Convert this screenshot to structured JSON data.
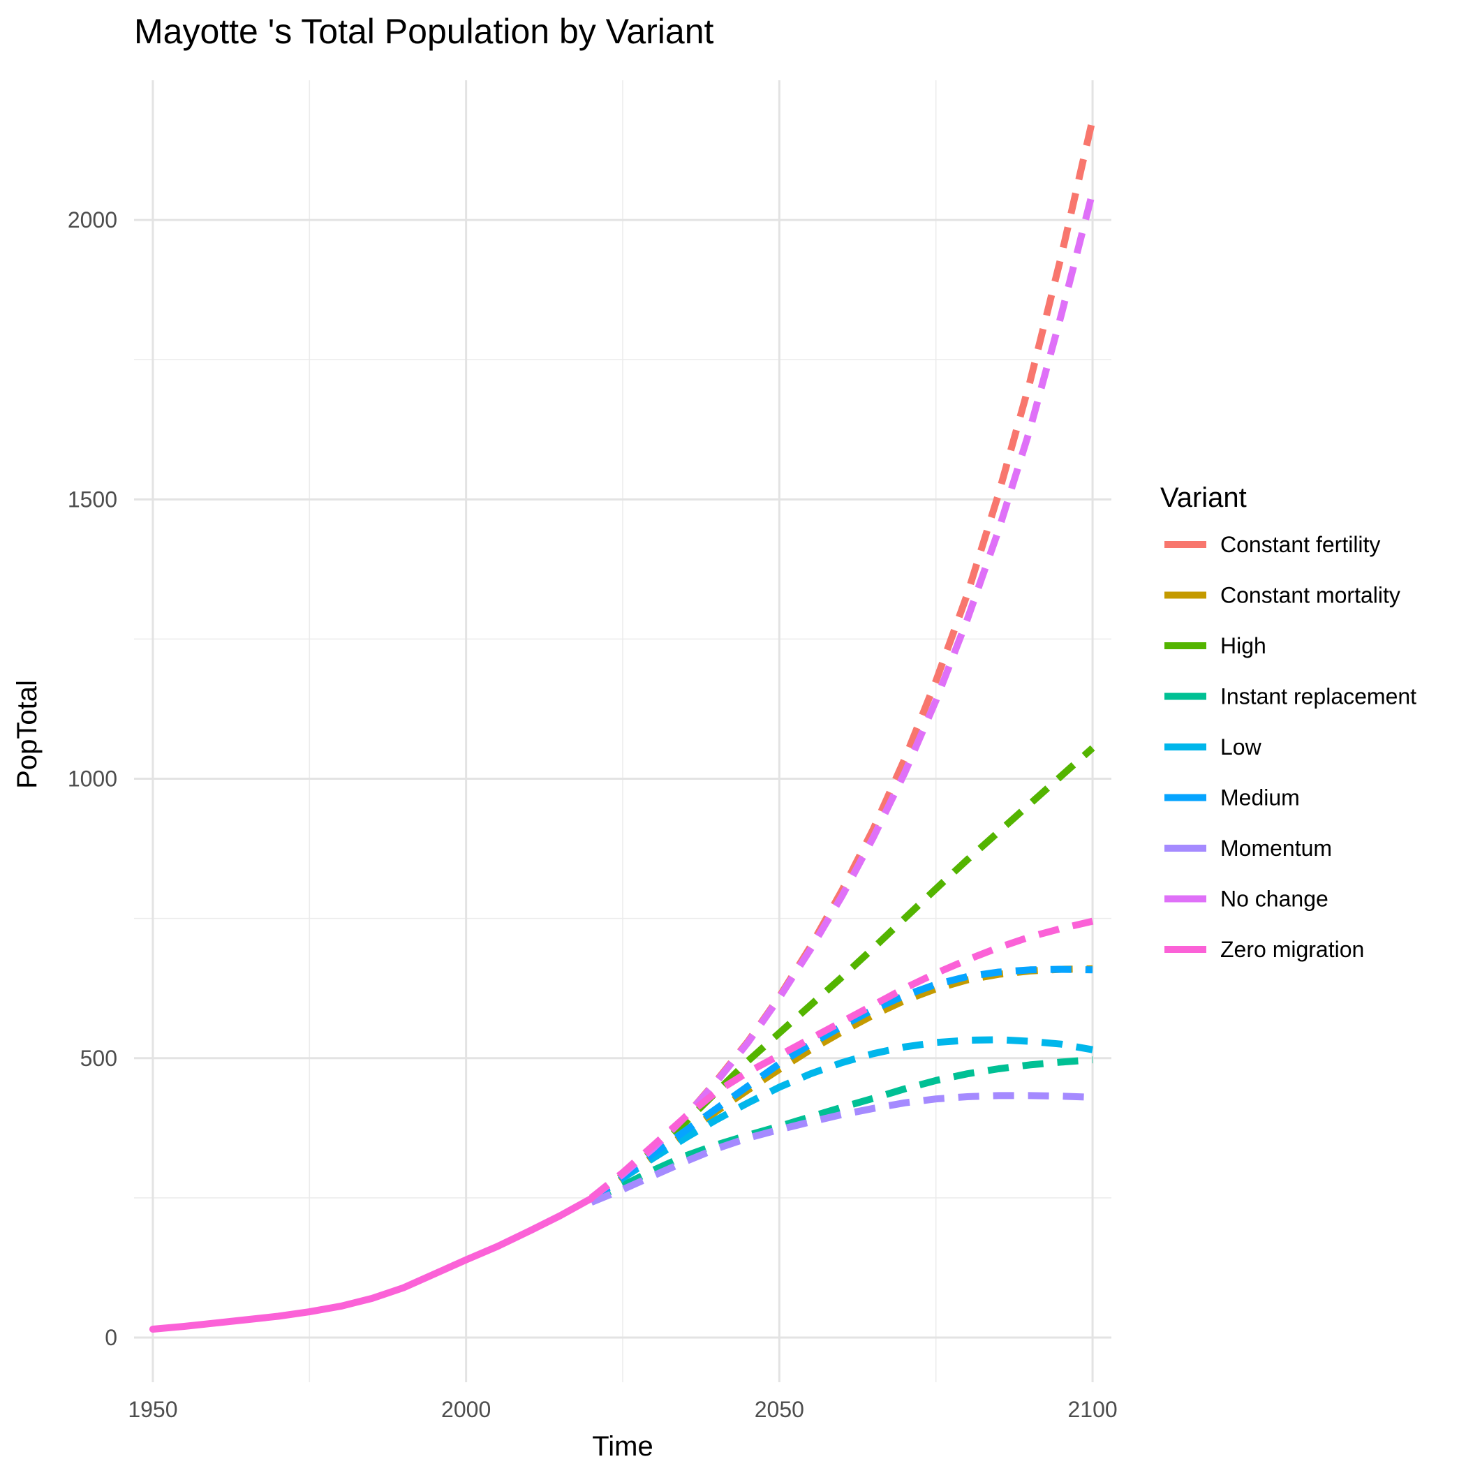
{
  "chart_data": {
    "type": "line",
    "title": "Mayotte 's Total Population by Variant",
    "xlabel": "Time",
    "ylabel": "PopTotal",
    "xlim": [
      1947,
      2103
    ],
    "ylim": [
      -80,
      2250
    ],
    "x_ticks": [
      1950,
      2000,
      2050,
      2100
    ],
    "y_ticks": [
      0,
      500,
      1000,
      1500,
      2000
    ],
    "grid": true,
    "legend": {
      "title": "Variant",
      "position": "right"
    },
    "historical": {
      "name": "Zero migration",
      "x": [
        1950,
        1955,
        1960,
        1965,
        1970,
        1975,
        1980,
        1985,
        1990,
        1995,
        2000,
        2005,
        2010,
        2015,
        2020
      ],
      "y": [
        15,
        20,
        26,
        32,
        38,
        46,
        56,
        70,
        89,
        114,
        139,
        163,
        190,
        218,
        249
      ]
    },
    "series": [
      {
        "name": "Constant fertility",
        "color": "#F8766D",
        "x": [
          2020,
          2025,
          2030,
          2035,
          2040,
          2045,
          2050,
          2055,
          2060,
          2065,
          2070,
          2075,
          2080,
          2085,
          2090,
          2095,
          2100
        ],
        "y": [
          250,
          292,
          340,
          395,
          460,
          530,
          610,
          700,
          800,
          910,
          1035,
          1175,
          1330,
          1510,
          1710,
          1935,
          2180
        ]
      },
      {
        "name": "Constant mortality",
        "color": "#C49A00",
        "x": [
          2020,
          2025,
          2030,
          2035,
          2040,
          2045,
          2050,
          2055,
          2060,
          2065,
          2070,
          2075,
          2080,
          2085,
          2090,
          2095,
          2100
        ],
        "y": [
          245,
          285,
          325,
          365,
          405,
          443,
          480,
          515,
          547,
          577,
          603,
          624,
          640,
          650,
          656,
          659,
          660
        ]
      },
      {
        "name": "High",
        "color": "#53B400",
        "x": [
          2020,
          2025,
          2030,
          2035,
          2040,
          2045,
          2050,
          2055,
          2060,
          2065,
          2070,
          2075,
          2080,
          2085,
          2090,
          2095,
          2100
        ],
        "y": [
          248,
          290,
          335,
          385,
          440,
          495,
          545,
          595,
          645,
          697,
          750,
          803,
          855,
          905,
          955,
          1005,
          1055
        ]
      },
      {
        "name": "Instant replacement",
        "color": "#00C094",
        "x": [
          2020,
          2025,
          2030,
          2035,
          2040,
          2045,
          2050,
          2055,
          2060,
          2065,
          2070,
          2075,
          2080,
          2085,
          2090,
          2095,
          2100
        ],
        "y": [
          245,
          272,
          300,
          325,
          345,
          362,
          378,
          395,
          412,
          428,
          445,
          460,
          472,
          481,
          488,
          493,
          497
        ]
      },
      {
        "name": "Low",
        "color": "#00B6EB",
        "x": [
          2020,
          2025,
          2030,
          2035,
          2040,
          2045,
          2050,
          2055,
          2060,
          2065,
          2070,
          2075,
          2080,
          2085,
          2090,
          2095,
          2100
        ],
        "y": [
          247,
          285,
          322,
          357,
          390,
          420,
          448,
          472,
          492,
          508,
          520,
          528,
          532,
          533,
          530,
          525,
          515
        ]
      },
      {
        "name": "Medium",
        "color": "#06A4FF",
        "x": [
          2020,
          2025,
          2030,
          2035,
          2040,
          2045,
          2050,
          2055,
          2060,
          2065,
          2070,
          2075,
          2080,
          2085,
          2090,
          2095,
          2100
        ],
        "y": [
          248,
          288,
          330,
          370,
          410,
          450,
          490,
          525,
          557,
          587,
          612,
          632,
          646,
          654,
          658,
          659,
          658
        ]
      },
      {
        "name": "Momentum",
        "color": "#A58AFF",
        "x": [
          2020,
          2025,
          2030,
          2035,
          2040,
          2045,
          2050,
          2055,
          2060,
          2065,
          2070,
          2075,
          2080,
          2085,
          2090,
          2095,
          2100
        ],
        "y": [
          242,
          265,
          290,
          315,
          338,
          357,
          372,
          386,
          399,
          410,
          420,
          427,
          431,
          433,
          433,
          432,
          430
        ]
      },
      {
        "name": "No change",
        "color": "#DF70F8",
        "x": [
          2020,
          2025,
          2030,
          2035,
          2040,
          2045,
          2050,
          2055,
          2060,
          2065,
          2070,
          2075,
          2080,
          2085,
          2090,
          2095,
          2100
        ],
        "y": [
          250,
          292,
          340,
          395,
          458,
          528,
          608,
          695,
          790,
          895,
          1010,
          1140,
          1285,
          1445,
          1625,
          1830,
          2050
        ]
      },
      {
        "name": "Zero migration",
        "color": "#FB61D7",
        "x": [
          2020,
          2025,
          2030,
          2035,
          2040,
          2045,
          2050,
          2055,
          2060,
          2065,
          2070,
          2075,
          2080,
          2085,
          2090,
          2095,
          2100
        ],
        "y": [
          250,
          295,
          345,
          395,
          440,
          475,
          505,
          535,
          565,
          595,
          625,
          652,
          676,
          698,
          717,
          732,
          745
        ]
      }
    ]
  }
}
